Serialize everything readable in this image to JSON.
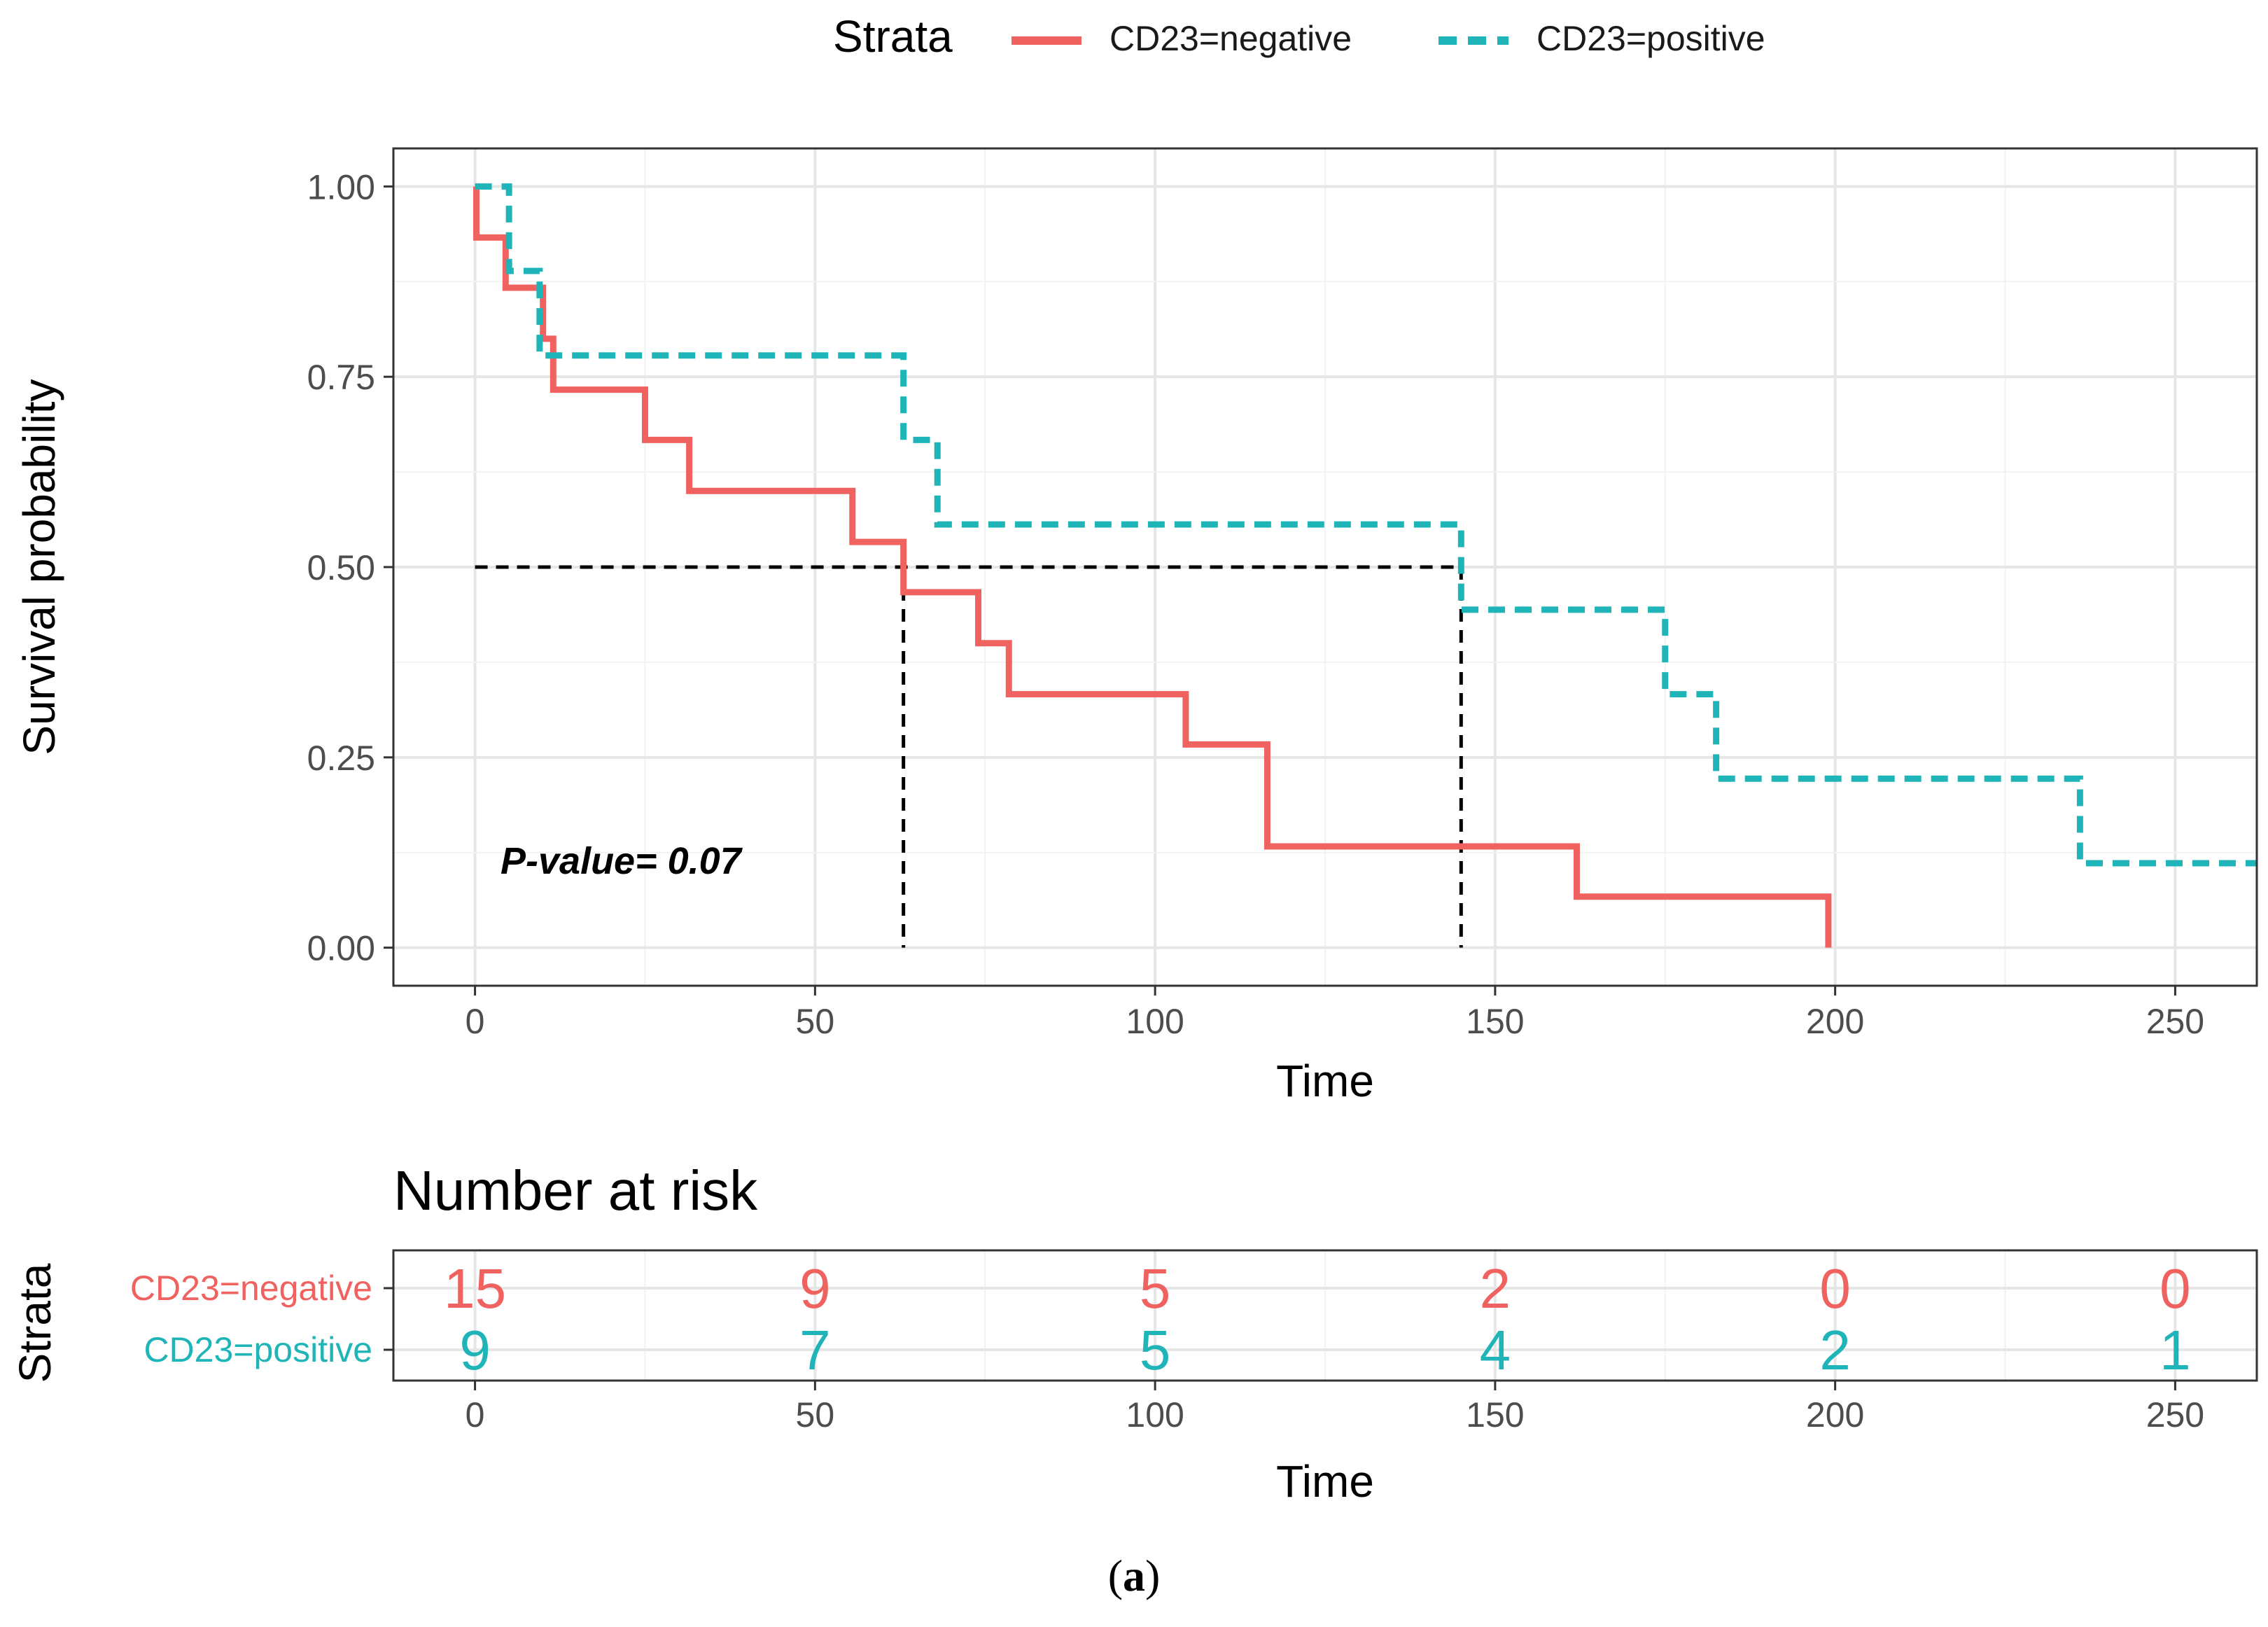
{
  "legend": {
    "title": "Strata",
    "entries": [
      {
        "label": "CD23=negative",
        "color": "#F0625F",
        "style": "solid"
      },
      {
        "label": "CD23=positive",
        "color": "#1FB5B8",
        "style": "dashed"
      }
    ],
    "placement": "top"
  },
  "chart_data": [
    {
      "type": "line",
      "subtype": "kaplan-meier step",
      "xlabel": "Time",
      "ylabel": "Survival probability",
      "xlim": [
        -12,
        262
      ],
      "ylim": [
        -0.05,
        1.05
      ],
      "x_ticks": [
        0,
        50,
        100,
        150,
        200,
        250
      ],
      "x_tick_labels": [
        "0",
        "50",
        "100",
        "150",
        "200",
        "250"
      ],
      "y_ticks": [
        0,
        0.25,
        0.5,
        0.75,
        1
      ],
      "y_tick_labels": [
        "0.00",
        "0.25",
        "0.50",
        "0.75",
        "1.00"
      ],
      "grid": true,
      "annotation": "P-value= 0.07",
      "median_survival": [
        63,
        145
      ],
      "median_level": 0.5,
      "series": [
        {
          "name": "CD23=negative",
          "color": "#F0625F",
          "style": "solid",
          "times": [
            0,
            0.2,
            4.5,
            10,
            11.5,
            25,
            31.5,
            55.5,
            63,
            74,
            78.5,
            104.5,
            116.5,
            162,
            199
          ],
          "survival": [
            1.0,
            0.933,
            0.867,
            0.8,
            0.733,
            0.667,
            0.6,
            0.533,
            0.467,
            0.4,
            0.333,
            0.267,
            0.133,
            0.067,
            0.0
          ],
          "end_time": 199
        },
        {
          "name": "CD23=positive",
          "color": "#1FB5B8",
          "style": "dashed",
          "times": [
            0,
            5,
            9.5,
            63,
            68,
            145,
            175,
            182.5,
            236
          ],
          "survival": [
            1.0,
            0.889,
            0.778,
            0.667,
            0.556,
            0.444,
            0.333,
            0.222,
            0.111
          ],
          "end_time": 262
        }
      ]
    },
    {
      "type": "table",
      "title": "Number at risk",
      "xlabel": "Time",
      "ylabel": "Strata",
      "x_ticks": [
        0,
        50,
        100,
        150,
        200,
        250
      ],
      "x_tick_labels": [
        "0",
        "50",
        "100",
        "150",
        "200",
        "250"
      ],
      "rows": [
        {
          "name": "CD23=negative",
          "color": "#F0625F",
          "values": [
            "15",
            "9",
            "5",
            "2",
            "0",
            "0"
          ]
        },
        {
          "name": "CD23=positive",
          "color": "#1FB5B8",
          "values": [
            "9",
            "7",
            "5",
            "4",
            "2",
            "1"
          ]
        }
      ]
    }
  ],
  "caption": {
    "open": "(",
    "letter": "a",
    "close": ")"
  }
}
